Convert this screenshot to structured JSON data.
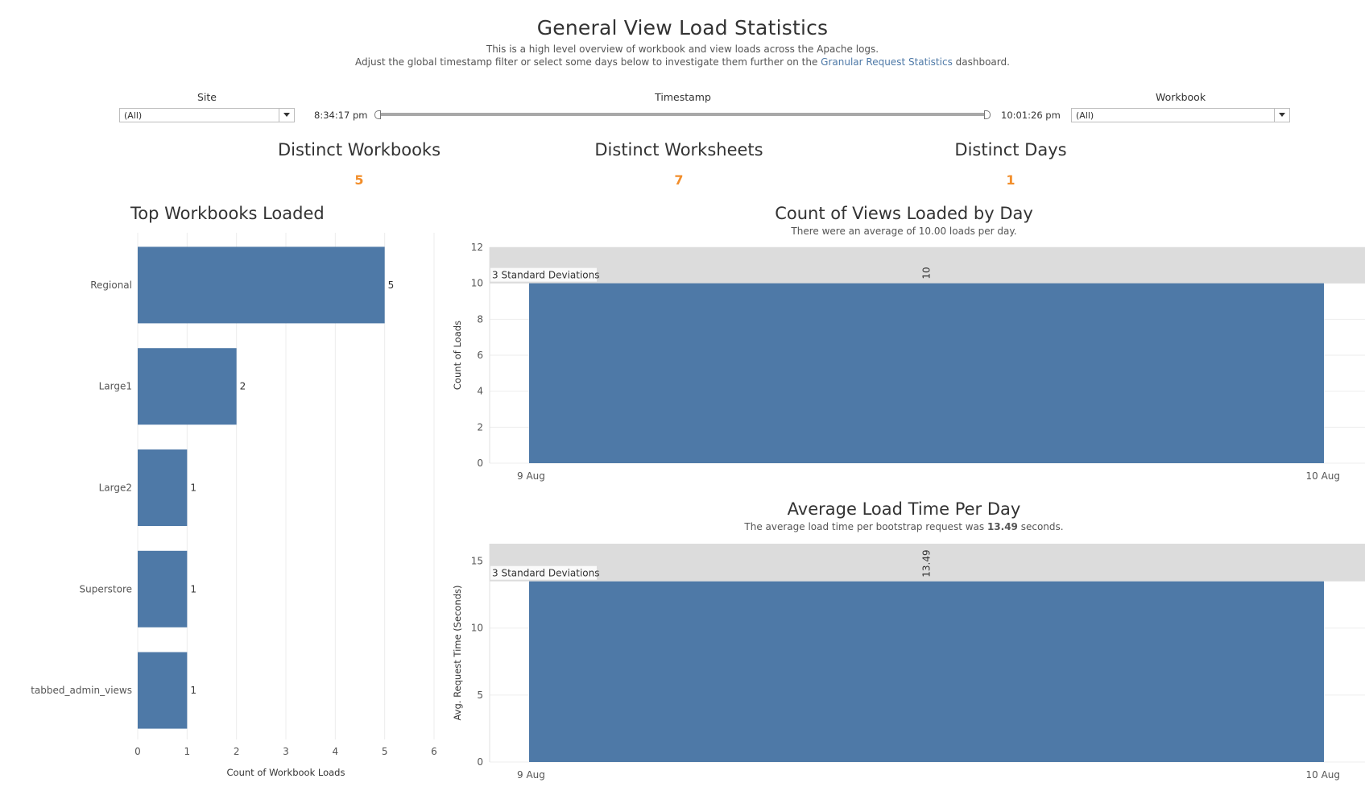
{
  "header": {
    "title": "General View Load Statistics",
    "subtitle_line1": "This is a high level overview of workbook and view loads across the Apache logs.",
    "subtitle_line2_prefix": "Adjust the global timestamp filter or select some days below to investigate them further on the ",
    "subtitle_link": "Granular Request Statistics",
    "subtitle_line2_suffix": " dashboard."
  },
  "filters": {
    "site": {
      "label": "Site",
      "value": "(All)"
    },
    "timestamp": {
      "label": "Timestamp",
      "start": "8:34:17 pm",
      "end": "10:01:26 pm"
    },
    "workbook": {
      "label": "Workbook",
      "value": "(All)"
    }
  },
  "kpis": [
    {
      "title": "Distinct Workbooks",
      "value": "5"
    },
    {
      "title": "Distinct Worksheets",
      "value": "7"
    },
    {
      "title": "Distinct Days",
      "value": "1"
    }
  ],
  "colors": {
    "bar": "#4e79a7",
    "kpi": "#f28e2b",
    "band": "#dcdcdc",
    "link": "#4e79a7"
  },
  "icons": {
    "dropdown": "caret-down-icon",
    "slider_handle": "slider-handle-icon"
  },
  "chart_data": [
    {
      "type": "bar",
      "orientation": "horizontal",
      "title": "Top Workbooks Loaded",
      "categories": [
        "Regional",
        "Large1",
        "Large2",
        "Superstore",
        "tabbed_admin_views"
      ],
      "values": [
        5,
        2,
        1,
        1,
        1
      ],
      "data_labels": [
        "5",
        "2",
        "1",
        "1",
        "1"
      ],
      "xlabel": "Count of Workbook Loads",
      "xlim": [
        0,
        6
      ],
      "xticks": [
        "0",
        "1",
        "2",
        "3",
        "4",
        "5",
        "6"
      ],
      "grid": true
    },
    {
      "type": "bar",
      "title": "Count of Views Loaded by Day",
      "subtitle": "There were an average of 10.00 loads per day.",
      "x_labels": [
        "9 Aug",
        "10 Aug"
      ],
      "values": [
        10
      ],
      "data_labels": [
        "10"
      ],
      "ylabel": "Count of  Loads",
      "ylim": [
        0,
        12
      ],
      "yticks": [
        "0",
        "2",
        "4",
        "6",
        "8",
        "10",
        "12"
      ],
      "reference_band": {
        "label": "3 Standard Deviations",
        "from": 10,
        "to": 12
      }
    },
    {
      "type": "bar",
      "title": "Average Load Time Per Day",
      "subtitle_prefix": "The average load time per bootstrap request was ",
      "subtitle_value": "13.49",
      "subtitle_suffix": " seconds.",
      "x_labels": [
        "9 Aug",
        "10 Aug"
      ],
      "values": [
        13.49
      ],
      "data_labels": [
        "13.49"
      ],
      "ylabel": "Avg. Request Time (Seconds)",
      "ylim": [
        0,
        16.3
      ],
      "yticks": [
        "0",
        "5",
        "10",
        "15"
      ],
      "reference_band": {
        "label": "3 Standard Deviations",
        "from": 13.49,
        "to": 16.3
      }
    }
  ]
}
